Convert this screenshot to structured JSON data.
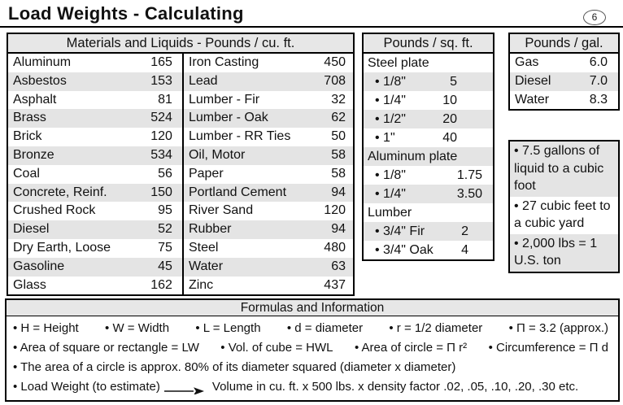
{
  "page": {
    "title": "Load Weights - Calculating",
    "page_number": "6"
  },
  "colors": {
    "row_alt": "#e4e4e4",
    "header_bg": "#e7e7e7",
    "border": "#000000",
    "text": "#111111"
  },
  "materials_table": {
    "header": "Materials and Liquids - Pounds / cu. ft.",
    "left_rows": [
      {
        "name": "Aluminum",
        "value": "165"
      },
      {
        "name": "Asbestos",
        "value": "153"
      },
      {
        "name": "Asphalt",
        "value": "81"
      },
      {
        "name": "Brass",
        "value": "524"
      },
      {
        "name": "Brick",
        "value": "120"
      },
      {
        "name": "Bronze",
        "value": "534"
      },
      {
        "name": "Coal",
        "value": "56"
      },
      {
        "name": "Concrete, Reinf.",
        "value": "150"
      },
      {
        "name": "Crushed Rock",
        "value": "95"
      },
      {
        "name": "Diesel",
        "value": "52"
      },
      {
        "name": "Dry Earth, Loose",
        "value": "75"
      },
      {
        "name": "Gasoline",
        "value": "45"
      },
      {
        "name": "Glass",
        "value": "162"
      }
    ],
    "right_rows": [
      {
        "name": "Iron Casting",
        "value": "450"
      },
      {
        "name": "Lead",
        "value": "708"
      },
      {
        "name": "Lumber - Fir",
        "value": "32"
      },
      {
        "name": "Lumber - Oak",
        "value": "62"
      },
      {
        "name": "Lumber - RR Ties",
        "value": "50"
      },
      {
        "name": "Oil, Motor",
        "value": "58"
      },
      {
        "name": "Paper",
        "value": "58"
      },
      {
        "name": "Portland Cement",
        "value": "94"
      },
      {
        "name": "River Sand",
        "value": "120"
      },
      {
        "name": "Rubber",
        "value": "94"
      },
      {
        "name": "Steel",
        "value": "480"
      },
      {
        "name": "Water",
        "value": "63"
      },
      {
        "name": "Zinc",
        "value": "437"
      }
    ]
  },
  "sqft_panel": {
    "header": "Pounds / sq. ft.",
    "rows": [
      {
        "label": "Steel plate",
        "value": "",
        "group": true
      },
      {
        "label": "• 1/8\"",
        "value": "5",
        "group": false
      },
      {
        "label": "• 1/4\"",
        "value": "10",
        "group": false
      },
      {
        "label": "• 1/2\"",
        "value": "20",
        "group": false
      },
      {
        "label": "• 1\"",
        "value": "40",
        "group": false
      },
      {
        "label": "Aluminum plate",
        "value": "",
        "group": true
      },
      {
        "label": "• 1/8\"",
        "value": "1.75",
        "group": false
      },
      {
        "label": "• 1/4\"",
        "value": "3.50",
        "group": false
      },
      {
        "label": "Lumber",
        "value": "",
        "group": true
      },
      {
        "label": "• 3/4\" Fir",
        "value": "2",
        "group": false
      },
      {
        "label": "• 3/4\" Oak",
        "value": "4",
        "group": false
      }
    ]
  },
  "gal_panel": {
    "header": "Pounds / gal.",
    "rows": [
      {
        "name": "Gas",
        "value": "6.0"
      },
      {
        "name": "Diesel",
        "value": "7.0"
      },
      {
        "name": "Water",
        "value": "8.3"
      }
    ]
  },
  "info_box": {
    "bullets": [
      "• 7.5 gallons of liquid to a cubic foot",
      "• 27 cubic feet  to a cubic yard",
      "•  2,000 lbs = 1 U.S. ton"
    ]
  },
  "formulas": {
    "header": "Formulas and Information",
    "line1_items": [
      "• H = Height",
      "• W = Width",
      "• L = Length",
      "• d = diameter",
      "• r = 1/2 diameter",
      "• Π = 3.2  (approx.)"
    ],
    "line2_items": [
      "• Area of square or rectangle = LW",
      "• Vol. of cube = HWL",
      "• Area of circle = Π r²",
      "• Circumference = Π d"
    ],
    "line3": "• The area of a circle is approx. 80% of its diameter squared (diameter x diameter)",
    "line4_prefix": "• Load Weight (to estimate)",
    "line4_suffix": "Volume in cu. ft. x 500 lbs. x  density factor .02, .05, .10, .20, .30 etc."
  }
}
